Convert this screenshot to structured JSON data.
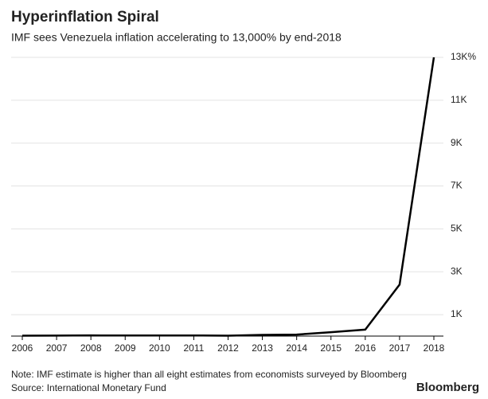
{
  "chart_data": {
    "type": "line",
    "title": "Hyperinflation Spiral",
    "subtitle": "IMF sees Venezuela inflation accelerating to 13,000% by end-2018",
    "note": "Note: IMF estimate is higher than all eight estimates from economists surveyed by Bloomberg",
    "source": "Source: International Monetary Fund",
    "brand": "Bloomberg",
    "categories": [
      "2006",
      "2007",
      "2008",
      "2009",
      "2010",
      "2011",
      "2012",
      "2013",
      "2014",
      "2015",
      "2016",
      "2017",
      "2018"
    ],
    "values": [
      17,
      22,
      31,
      26,
      29,
      28,
      20,
      56,
      69,
      181,
      300,
      2400,
      13000
    ],
    "color": "#000000",
    "ylim": [
      0,
      13000
    ],
    "yticks": [
      {
        "value": 1000,
        "label": "1K"
      },
      {
        "value": 3000,
        "label": "3K"
      },
      {
        "value": 5000,
        "label": "5K"
      },
      {
        "value": 7000,
        "label": "7K"
      },
      {
        "value": 9000,
        "label": "9K"
      },
      {
        "value": 11000,
        "label": "11K"
      },
      {
        "value": 13000,
        "label": "13K%"
      }
    ],
    "grid": true
  }
}
